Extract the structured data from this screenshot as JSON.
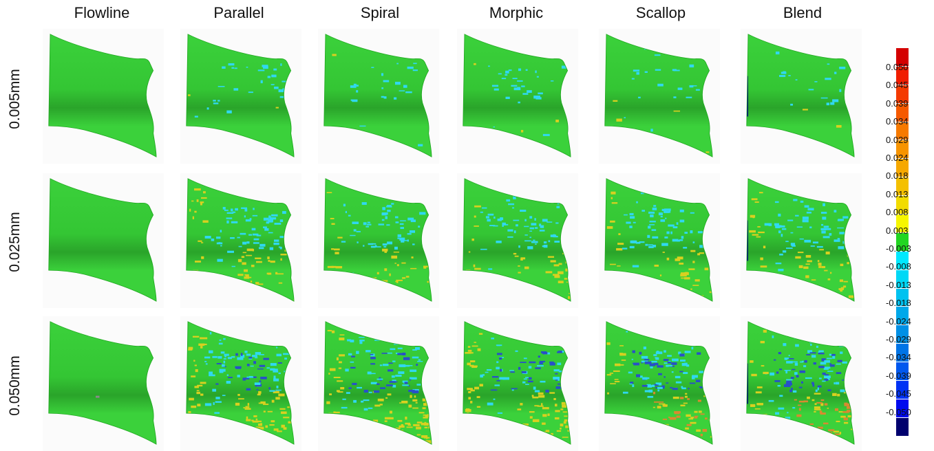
{
  "columns": [
    "Flowline",
    "Parallel",
    "Spiral",
    "Morphic",
    "Scallop",
    "Blend"
  ],
  "rows": [
    "0.005mm",
    "0.025mm",
    "0.050mm"
  ],
  "scale": {
    "labels": [
      "0.050",
      "0.045",
      "0.039",
      "0.034",
      "0.029",
      "0.024",
      "0.018",
      "0.013",
      "0.008",
      "0.003",
      "-0.003",
      "-0.008",
      "-0.013",
      "-0.018",
      "-0.024",
      "-0.029",
      "-0.034",
      "-0.039",
      "-0.045",
      "-0.050"
    ],
    "colors": [
      "#d40000",
      "#f01e00",
      "#f43a00",
      "#f65a00",
      "#f77a00",
      "#f79400",
      "#f6a800",
      "#f4c000",
      "#f2dc00",
      "#f6f600",
      "#22d622",
      "#00e8ff",
      "#00d8f6",
      "#00c2f0",
      "#00a8ea",
      "#0090e6",
      "#0074e6",
      "#0058ee",
      "#0032f4",
      "#000aee",
      "#00006e"
    ]
  },
  "palette": {
    "green": "#3bd13b",
    "green_dark": "#2aa42a",
    "cyan": "#30d8f0",
    "yellow": "#d8d020",
    "orange": "#d88a30",
    "blue": "#2850c8",
    "navy": "#000080",
    "grey": "#8a8a8a"
  },
  "patterns": [
    [
      "none",
      "light-cyan",
      "light-cyan",
      "mottled",
      "mottled-cyan",
      "mottled-cyan-navy"
    ],
    [
      "none",
      "mixed",
      "mixed",
      "mixed-yellow",
      "mixed-cyan",
      "mixed-navy"
    ],
    [
      "grey-specks",
      "heavy",
      "heavy",
      "heavy-yellow",
      "heavy-orange",
      "heavy-red"
    ]
  ]
}
